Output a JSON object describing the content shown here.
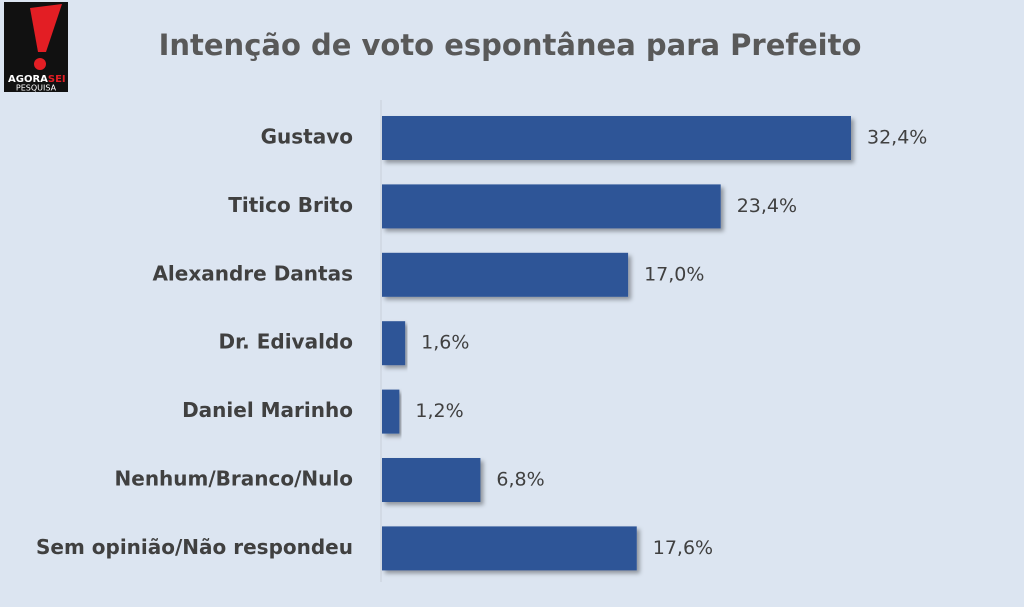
{
  "logo": {
    "brand_start": "AGORA",
    "brand_end": "SEI",
    "tagline": "PESQUISA"
  },
  "chart_data": {
    "type": "bar",
    "orientation": "horizontal",
    "title": "Intenção de voto espontânea para Prefeito",
    "categories": [
      "Gustavo",
      "Titico Brito",
      "Alexandre Dantas",
      "Dr. Edivaldo",
      "Daniel Marinho",
      "Nenhum/Branco/Nulo",
      "Sem opinião/Não respondeu"
    ],
    "values": [
      32.4,
      23.4,
      17.0,
      1.6,
      1.2,
      6.8,
      17.6
    ],
    "value_labels": [
      "32,4%",
      "23,4%",
      "17,0%",
      "1,6%",
      "1,2%",
      "6,8%",
      "17,6%"
    ],
    "color": "#2f5597"
  }
}
